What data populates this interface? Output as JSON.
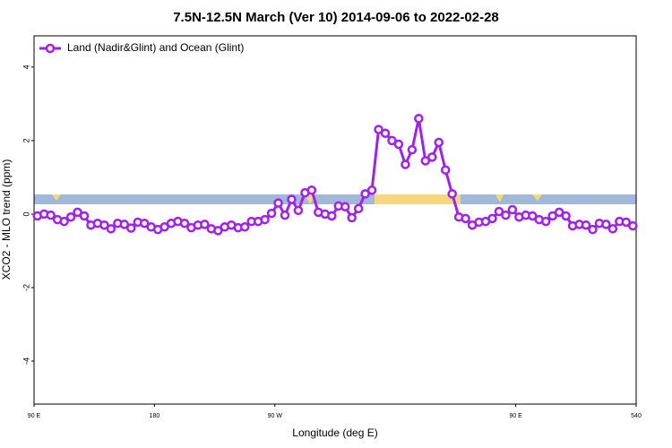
{
  "chart_data": {
    "type": "line",
    "title": "7.5N-12.5N March (Ver 10)   2014-09-06 to 2022-02-28",
    "x_label": "Longitude (deg E)",
    "y_label": "XCO2 - MLO trend (ppm)",
    "x": [
      92.5,
      97.5,
      102.5,
      107.5,
      112.5,
      117.5,
      122.5,
      127.5,
      132.5,
      137.5,
      142.5,
      147.5,
      152.5,
      157.5,
      162.5,
      167.5,
      172.5,
      177.5,
      182.5,
      187.5,
      192.5,
      197.5,
      202.5,
      207.5,
      212.5,
      217.5,
      222.5,
      227.5,
      232.5,
      237.5,
      242.5,
      247.5,
      252.5,
      257.5,
      262.5,
      267.5,
      272.5,
      277.5,
      282.5,
      287.5,
      292.5,
      297.5,
      302.5,
      307.5,
      312.5,
      317.5,
      322.5,
      327.5,
      332.5,
      337.5,
      342.5,
      347.5,
      352.5,
      357.5,
      362.5,
      367.5,
      372.5,
      377.5,
      382.5,
      387.5,
      392.5,
      397.5,
      402.5,
      407.5,
      412.5,
      417.5,
      422.5,
      427.5,
      432.5,
      437.5,
      442.5,
      447.5,
      452.5,
      457.5,
      462.5,
      467.5,
      472.5,
      477.5,
      482.5,
      487.5,
      492.5,
      497.5,
      502.5,
      507.5,
      512.5,
      517.5,
      522.5,
      527.5,
      532.5,
      537.5
    ],
    "series": [
      {
        "name": "Land (Nadir&Glint) and Ocean (Glint)",
        "color": "#a020f0",
        "values": [
          -0.05,
          0,
          -0.03,
          -0.15,
          -0.2,
          -0.08,
          0.05,
          -0.05,
          -0.3,
          -0.25,
          -0.3,
          -0.4,
          -0.25,
          -0.28,
          -0.38,
          -0.22,
          -0.25,
          -0.35,
          -0.42,
          -0.35,
          -0.25,
          -0.2,
          -0.25,
          -0.37,
          -0.3,
          -0.28,
          -0.4,
          -0.45,
          -0.35,
          -0.3,
          -0.37,
          -0.35,
          -0.2,
          -0.2,
          -0.15,
          0.02,
          0.3,
          -0.03,
          0.4,
          0.1,
          0.58,
          0.65,
          0.05,
          0,
          -0.05,
          0.22,
          0.2,
          -0.1,
          0.15,
          0.55,
          0.65,
          2.3,
          2.2,
          2.0,
          1.9,
          1.35,
          1.75,
          2.6,
          1.45,
          1.55,
          1.95,
          1.2,
          0.55,
          -0.08,
          -0.12,
          -0.3,
          -0.22,
          -0.2,
          -0.12,
          0.07,
          -0.03,
          0.12,
          -0.08,
          -0.03,
          -0.05,
          -0.15,
          -0.2,
          -0.05,
          0.05,
          -0.05,
          -0.32,
          -0.28,
          -0.3,
          -0.42,
          -0.25,
          -0.28,
          -0.4,
          -0.2,
          -0.22,
          -0.32
        ]
      }
    ],
    "xlim": [
      90,
      540
    ],
    "xticks": [
      {
        "value": 90,
        "label": "90 E"
      },
      180,
      {
        "value": 270,
        "label": "90 W"
      },
      {
        "value": 450,
        "label": "90 E"
      },
      540
    ],
    "ylim": [
      -5.17,
      4.85
    ],
    "yticks": [
      -4,
      -2,
      0,
      2,
      4
    ],
    "legend": "top-left"
  }
}
